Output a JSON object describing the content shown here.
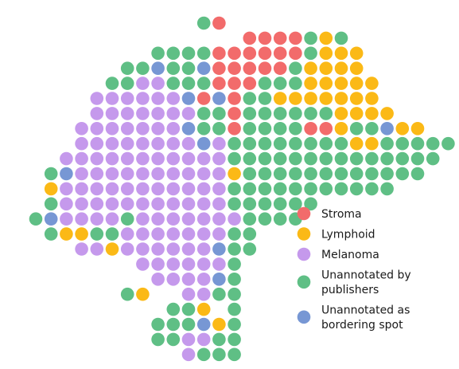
{
  "chart_data": {
    "type": "scatter",
    "title": "",
    "xlabel": "",
    "ylabel": "",
    "grid": false,
    "legend_position": "right",
    "categories": [
      {
        "key": "S",
        "label_lines": [
          "Stroma"
        ],
        "color": "#f26b6b"
      },
      {
        "key": "L",
        "label_lines": [
          "Lymphoid"
        ],
        "color": "#fbb916"
      },
      {
        "key": "M",
        "label_lines": [
          "Melanoma"
        ],
        "color": "#c599ec"
      },
      {
        "key": "G",
        "label_lines": [
          "Unannotated by",
          "publishers"
        ],
        "color": "#5fbf85"
      },
      {
        "key": "B",
        "label_lines": [
          "Unannotated as",
          "bordering spot"
        ],
        "color": "#7797d4"
      }
    ],
    "grid_rows": [
      {
        "y": 0,
        "start": 11,
        "cells": "GS"
      },
      {
        "y": 1,
        "start": 14,
        "cells": "SSSSGLG"
      },
      {
        "y": 2,
        "start": 8,
        "cells": "GGGGSSSSSSGLLL"
      },
      {
        "y": 3,
        "start": 6,
        "cells": "GGBGGBSSSSSGLLLL"
      },
      {
        "y": 4,
        "start": 5,
        "cells": "GGMMGGGSSSGGGLLLLL"
      },
      {
        "y": 5,
        "start": 4,
        "cells": "MMMMMMBSBSGGLLLLLLL"
      },
      {
        "y": 6,
        "start": 4,
        "cells": "MMMMMMMGGSGGGGGGLLLL"
      },
      {
        "y": 7,
        "start": 3,
        "cells": "MMMMMMMBGGSGGGGSSLGGBLL"
      },
      {
        "y": 8,
        "start": 3,
        "cells": "MMMMMMMMBMGGGGGGGGLLGGGGG"
      },
      {
        "y": 9,
        "start": 2,
        "cells": "MMMMMMMMMMMGGGGGGGGGGGGGG"
      },
      {
        "y": 10,
        "start": 1,
        "cells": "GBMMMMMMMMMMLGGGGGGGGGGGG"
      },
      {
        "y": 11,
        "start": 1,
        "cells": "LMMMMMMMMMMMGGGGGGGGGGG"
      },
      {
        "y": 12,
        "start": 1,
        "cells": "GMMMMMMMMMMMGGGGGG"
      },
      {
        "y": 13,
        "start": 0,
        "cells": "GBMMMMGMMMMMMMGGGG"
      },
      {
        "y": 14,
        "start": 1,
        "cells": "GLLGGMMMMMMMGG"
      },
      {
        "y": 15,
        "start": 3,
        "cells": "MMLMMMMMMBGG"
      },
      {
        "y": 16,
        "start": 7,
        "cells": "MMMMMMG"
      },
      {
        "y": 17,
        "start": 8,
        "cells": "MMMMBG"
      },
      {
        "y": 18,
        "start": 6,
        "cells": "GL"
      },
      {
        "y": 18,
        "start": 10,
        "cells": "MMGG"
      },
      {
        "y": 19,
        "start": 9,
        "cells": "GGL"
      },
      {
        "y": 19,
        "start": 13,
        "cells": "G"
      },
      {
        "y": 20,
        "start": 8,
        "cells": "GGGBLG"
      },
      {
        "y": 21,
        "start": 8,
        "cells": "GGMMGG"
      },
      {
        "y": 22,
        "start": 10,
        "cells": "MGGG"
      }
    ]
  }
}
